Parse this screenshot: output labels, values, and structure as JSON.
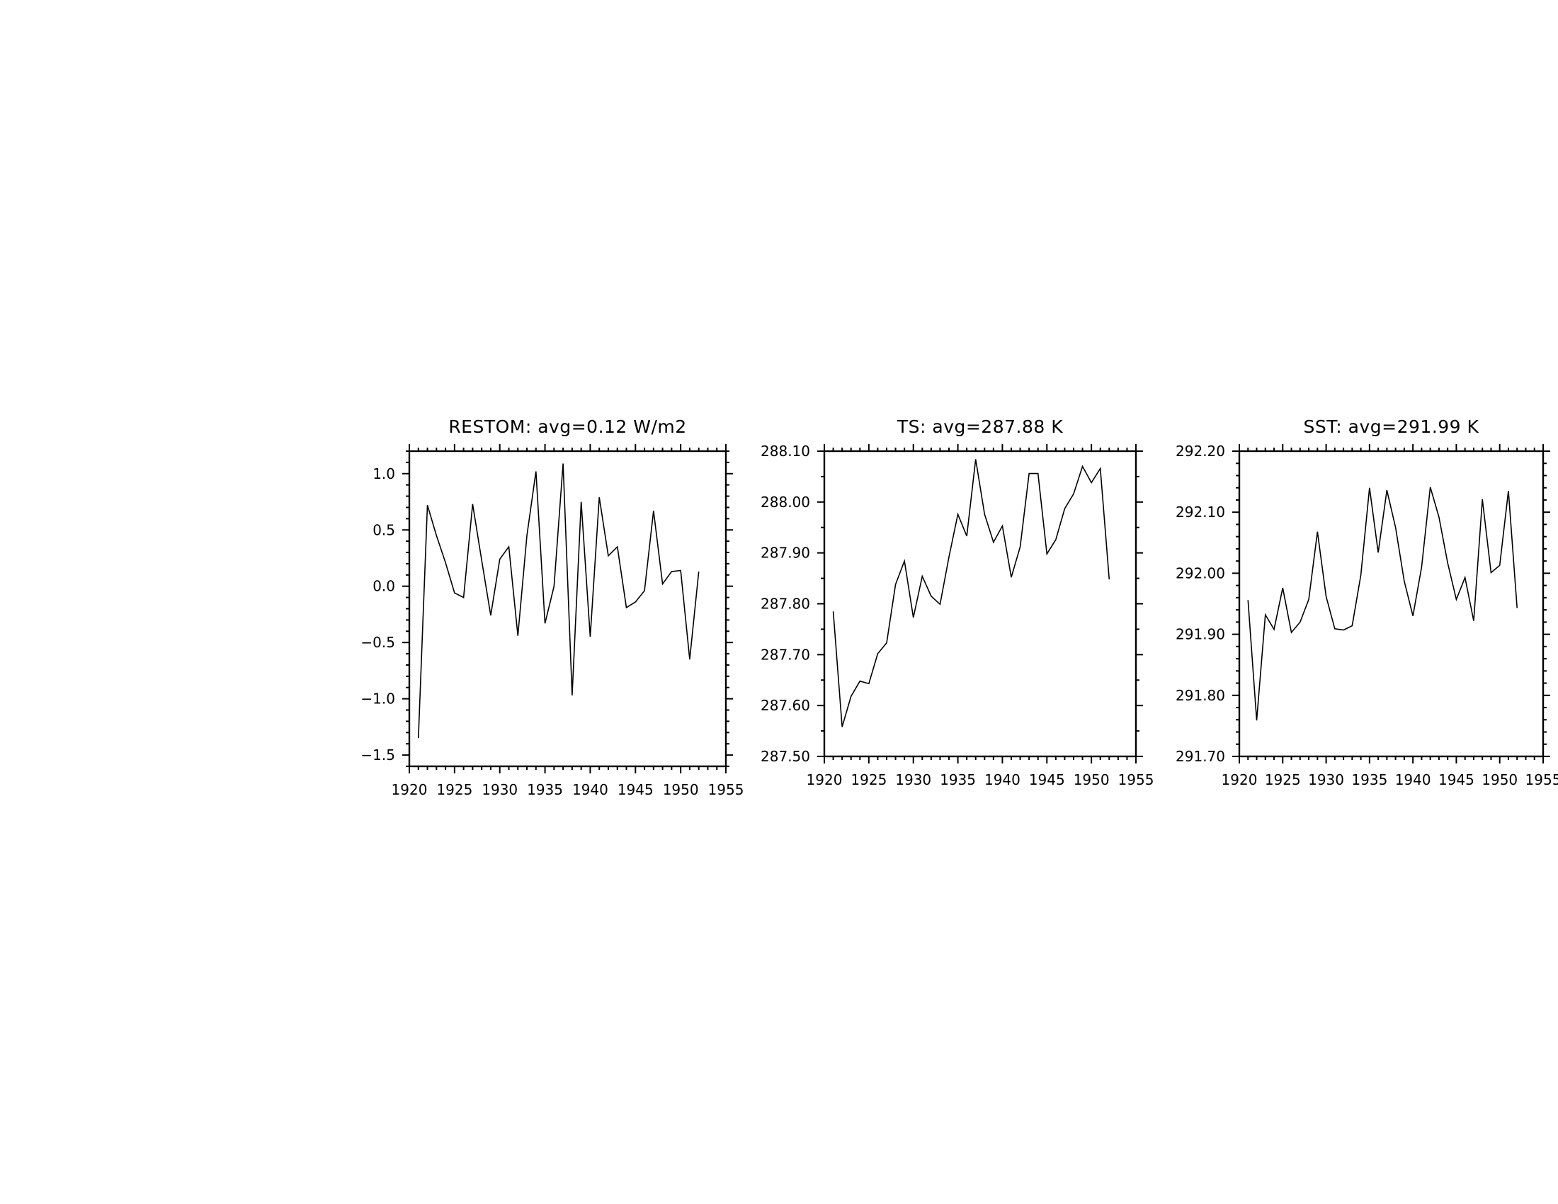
{
  "chart_data": [
    {
      "type": "line",
      "title": "RESTOM: avg=0.12 W/m2",
      "xlabel": "",
      "ylabel": "",
      "xlim": [
        1920,
        1955
      ],
      "ylim": [
        -1.6,
        1.2
      ],
      "xticks": [
        1920,
        1925,
        1930,
        1935,
        1940,
        1945,
        1950,
        1955
      ],
      "xtick_labels": [
        "1920",
        "1925",
        "1930",
        "1935",
        "1940",
        "1945",
        "1950",
        "1955"
      ],
      "xminor_step": 1,
      "yticks": [
        -1.5,
        -1.0,
        -0.5,
        0.0,
        0.5,
        1.0
      ],
      "ytick_labels": [
        "−1.5",
        "−1.0",
        "−0.5",
        "0.0",
        "0.5",
        "1.0"
      ],
      "yminor_step": 0.1,
      "grid": false,
      "series": [
        {
          "x": [
            1921,
            1922,
            1923,
            1924,
            1925,
            1926,
            1927,
            1928,
            1929,
            1930,
            1931,
            1932,
            1933,
            1934,
            1935,
            1936,
            1937,
            1938,
            1939,
            1940,
            1941,
            1942,
            1943,
            1944,
            1945,
            1946,
            1947,
            1948,
            1949,
            1950,
            1951,
            1952
          ],
          "values": [
            -1.35,
            0.72,
            0.45,
            0.21,
            -0.06,
            -0.1,
            0.73,
            0.23,
            -0.26,
            0.24,
            0.35,
            -0.44,
            0.45,
            1.02,
            -0.33,
            0.0,
            1.09,
            -0.97,
            0.75,
            -0.45,
            0.79,
            0.27,
            0.35,
            -0.19,
            -0.14,
            -0.04,
            0.67,
            0.02,
            0.13,
            0.14,
            -0.65,
            0.13
          ]
        }
      ]
    },
    {
      "type": "line",
      "title": "TS: avg=287.88 K",
      "xlabel": "",
      "ylabel": "",
      "xlim": [
        1920,
        1955
      ],
      "ylim": [
        287.5,
        288.1
      ],
      "xticks": [
        1920,
        1925,
        1930,
        1935,
        1940,
        1945,
        1950,
        1955
      ],
      "xtick_labels": [
        "1920",
        "1925",
        "1930",
        "1935",
        "1940",
        "1945",
        "1950",
        "1955"
      ],
      "xminor_step": 1,
      "yticks": [
        287.5,
        287.6,
        287.7,
        287.8,
        287.9,
        288.0,
        288.1
      ],
      "ytick_labels": [
        "287.50",
        "287.60",
        "287.70",
        "287.80",
        "287.90",
        "288.00",
        "288.10"
      ],
      "yminor_step": 0.05,
      "grid": false,
      "series": [
        {
          "x": [
            1921,
            1922,
            1923,
            1924,
            1925,
            1926,
            1927,
            1928,
            1929,
            1930,
            1931,
            1932,
            1933,
            1934,
            1935,
            1936,
            1937,
            1938,
            1939,
            1940,
            1941,
            1942,
            1943,
            1944,
            1945,
            1946,
            1947,
            1948,
            1949,
            1950,
            1951,
            1952
          ],
          "values": [
            287.785,
            287.558,
            287.618,
            287.648,
            287.643,
            287.702,
            287.723,
            287.838,
            287.884,
            287.773,
            287.854,
            287.815,
            287.799,
            287.892,
            287.976,
            287.933,
            288.084,
            287.976,
            287.921,
            287.953,
            287.852,
            287.912,
            288.056,
            288.056,
            287.898,
            287.926,
            287.987,
            288.016,
            288.07,
            288.038,
            288.066,
            287.848
          ]
        }
      ]
    },
    {
      "type": "line",
      "title": "SST: avg=291.99 K",
      "xlabel": "",
      "ylabel": "",
      "xlim": [
        1920,
        1955
      ],
      "ylim": [
        291.7,
        292.2
      ],
      "xticks": [
        1920,
        1925,
        1930,
        1935,
        1940,
        1945,
        1950,
        1955
      ],
      "xtick_labels": [
        "1920",
        "1925",
        "1930",
        "1935",
        "1940",
        "1945",
        "1950",
        "1955"
      ],
      "xminor_step": 1,
      "yticks": [
        291.7,
        291.8,
        291.9,
        292.0,
        292.1,
        292.2
      ],
      "ytick_labels": [
        "291.70",
        "291.80",
        "291.90",
        "292.00",
        "292.10",
        "292.20"
      ],
      "yminor_step": 0.02,
      "grid": false,
      "series": [
        {
          "x": [
            1921,
            1922,
            1923,
            1924,
            1925,
            1926,
            1927,
            1928,
            1929,
            1930,
            1931,
            1932,
            1933,
            1934,
            1935,
            1936,
            1937,
            1938,
            1939,
            1940,
            1941,
            1942,
            1943,
            1944,
            1945,
            1946,
            1947,
            1948,
            1949,
            1950,
            1951,
            1952
          ],
          "values": [
            291.956,
            291.759,
            291.932,
            291.908,
            291.976,
            291.903,
            291.92,
            291.957,
            292.068,
            291.962,
            291.909,
            291.907,
            291.914,
            291.997,
            292.14,
            292.034,
            292.136,
            292.075,
            291.987,
            291.93,
            292.01,
            292.141,
            292.092,
            292.017,
            291.957,
            291.993,
            291.922,
            292.121,
            292.001,
            292.013,
            292.135,
            291.943
          ]
        }
      ]
    }
  ]
}
